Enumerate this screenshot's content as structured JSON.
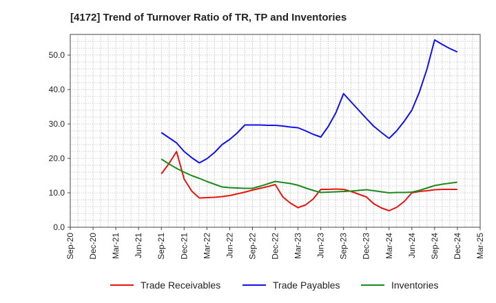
{
  "chart_data": {
    "type": "line",
    "title": "[4172]  Trend of Turnover Ratio of TR, TP and Inventories",
    "xlabel": "",
    "ylabel": "",
    "ylim": [
      0,
      56
    ],
    "y_ticks": [
      "0.0",
      "10.0",
      "20.0",
      "30.0",
      "40.0",
      "50.0"
    ],
    "x_ticks": [
      "Sep-20",
      "Dec-20",
      "Mar-21",
      "Jun-21",
      "Sep-21",
      "Dec-21",
      "Mar-22",
      "Jun-22",
      "Sep-22",
      "Dec-22",
      "Mar-23",
      "Jun-23",
      "Sep-23",
      "Dec-23",
      "Mar-24",
      "Jun-24",
      "Sep-24",
      "Dec-24",
      "Mar-25"
    ],
    "grid": true,
    "legend_position": "bottom",
    "x": [
      "Sep-21",
      "Oct-21",
      "Nov-21",
      "Dec-21",
      "Jan-22",
      "Feb-22",
      "Mar-22",
      "Apr-22",
      "May-22",
      "Jun-22",
      "Jul-22",
      "Aug-22",
      "Sep-22",
      "Oct-22",
      "Nov-22",
      "Dec-22",
      "Jan-23",
      "Feb-23",
      "Mar-23",
      "Apr-23",
      "May-23",
      "Jun-23",
      "Jul-23",
      "Aug-23",
      "Sep-23",
      "Oct-23",
      "Nov-23",
      "Dec-23",
      "Jan-24",
      "Feb-24",
      "Mar-24",
      "Apr-24",
      "May-24",
      "Jun-24",
      "Jul-24",
      "Aug-24",
      "Sep-24",
      "Oct-24",
      "Nov-24",
      "Dec-24"
    ],
    "series": [
      {
        "name": "Trade Receivables",
        "color": "#e8140c",
        "values": [
          15.5,
          18.5,
          22.0,
          14.0,
          10.5,
          8.5,
          8.6,
          8.7,
          8.9,
          9.2,
          9.7,
          10.2,
          10.8,
          11.3,
          11.8,
          12.4,
          8.8,
          7.0,
          5.7,
          6.5,
          8.2,
          11.0,
          11.0,
          11.1,
          11.0,
          10.4,
          9.6,
          8.8,
          6.8,
          5.6,
          4.8,
          5.8,
          7.5,
          10.0,
          10.4,
          10.6,
          10.9,
          11.0,
          11.0,
          11.0
        ]
      },
      {
        "name": "Trade Payables",
        "color": "#1010ee",
        "values": [
          27.5,
          26.0,
          24.5,
          22.0,
          20.2,
          18.7,
          19.9,
          21.7,
          24.0,
          25.5,
          27.4,
          29.7,
          29.7,
          29.7,
          29.6,
          29.6,
          29.4,
          29.1,
          28.9,
          28.0,
          27.0,
          26.2,
          29.3,
          33.3,
          38.8,
          36.4,
          34.0,
          31.6,
          29.3,
          27.5,
          25.8,
          28.0,
          30.8,
          34.0,
          39.3,
          46.0,
          54.4,
          53.1,
          51.9,
          50.9
        ]
      },
      {
        "name": "Inventories",
        "color": "#1a8a1a",
        "values": [
          19.8,
          18.4,
          17.1,
          16.0,
          15.0,
          14.2,
          13.3,
          12.5,
          11.7,
          11.5,
          11.4,
          11.3,
          11.3,
          11.9,
          12.6,
          13.3,
          13.0,
          12.7,
          12.2,
          11.4,
          10.7,
          10.1,
          10.2,
          10.3,
          10.4,
          10.5,
          10.7,
          10.9,
          10.6,
          10.3,
          10.0,
          10.1,
          10.1,
          10.2,
          10.7,
          11.4,
          12.1,
          12.5,
          12.8,
          13.1
        ]
      }
    ]
  }
}
